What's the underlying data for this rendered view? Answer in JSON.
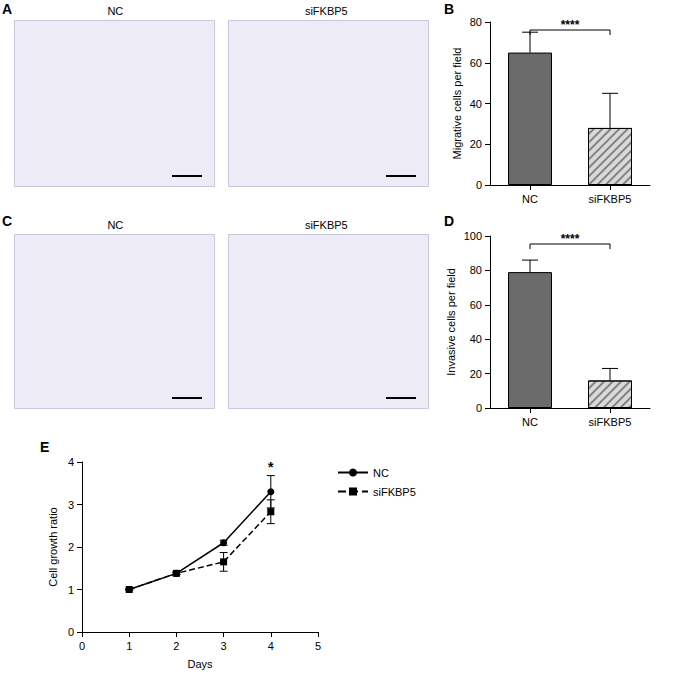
{
  "image_panels": [
    {
      "letter": "A",
      "images": [
        "NC",
        "siFKBP5"
      ]
    },
    {
      "letter": "C",
      "images": [
        "NC",
        "siFKBP5"
      ]
    }
  ],
  "chart_data": [
    {
      "panel": "B",
      "type": "bar",
      "categories": [
        "NC",
        "siFKBP5"
      ],
      "values": [
        65,
        28
      ],
      "errors": [
        10,
        17
      ],
      "colors": [
        "#6b6b6b",
        "#d9d9d9"
      ],
      "y_label": "Migrative cells per field",
      "ylim": [
        0,
        80
      ],
      "yticks": [
        0,
        20,
        40,
        60,
        80
      ],
      "grid": false,
      "annotations": [
        {
          "text": "****",
          "between": [
            "NC",
            "siFKBP5"
          ]
        }
      ]
    },
    {
      "panel": "D",
      "type": "bar",
      "categories": [
        "NC",
        "siFKBP5"
      ],
      "values": [
        79,
        16
      ],
      "errors": [
        7,
        7
      ],
      "colors": [
        "#6b6b6b",
        "#d9d9d9"
      ],
      "y_label": "Invasive cells per field",
      "ylim": [
        0,
        100
      ],
      "yticks": [
        0,
        20,
        40,
        60,
        80,
        100
      ],
      "grid": false,
      "annotations": [
        {
          "text": "****",
          "between": [
            "NC",
            "siFKBP5"
          ]
        }
      ]
    },
    {
      "panel": "E",
      "type": "line",
      "x_label": "Days",
      "y_label": "Cell growth ratio",
      "xlim": [
        0,
        5
      ],
      "xticks": [
        0,
        1,
        2,
        3,
        4,
        5
      ],
      "ylim": [
        0,
        4
      ],
      "yticks": [
        0,
        1,
        2,
        3,
        4
      ],
      "grid": false,
      "legend": "right",
      "series": [
        {
          "name": "NC",
          "color": "#000000",
          "marker": "circle",
          "line_style": "solid",
          "x": [
            1,
            2,
            3,
            4
          ],
          "values": [
            1,
            1.38,
            2.1,
            3.3
          ],
          "errors": [
            0.01,
            0.02,
            0.06,
            0.38
          ]
        },
        {
          "name": "siFKBP5",
          "color": "#000000",
          "marker": "square",
          "line_style": "dashed",
          "x": [
            1,
            2,
            3,
            4
          ],
          "values": [
            1,
            1.38,
            1.65,
            2.83
          ],
          "errors": [
            0.01,
            0.03,
            0.22,
            0.28
          ]
        }
      ],
      "annotations": [
        {
          "text": "*",
          "x": 4
        }
      ]
    }
  ]
}
